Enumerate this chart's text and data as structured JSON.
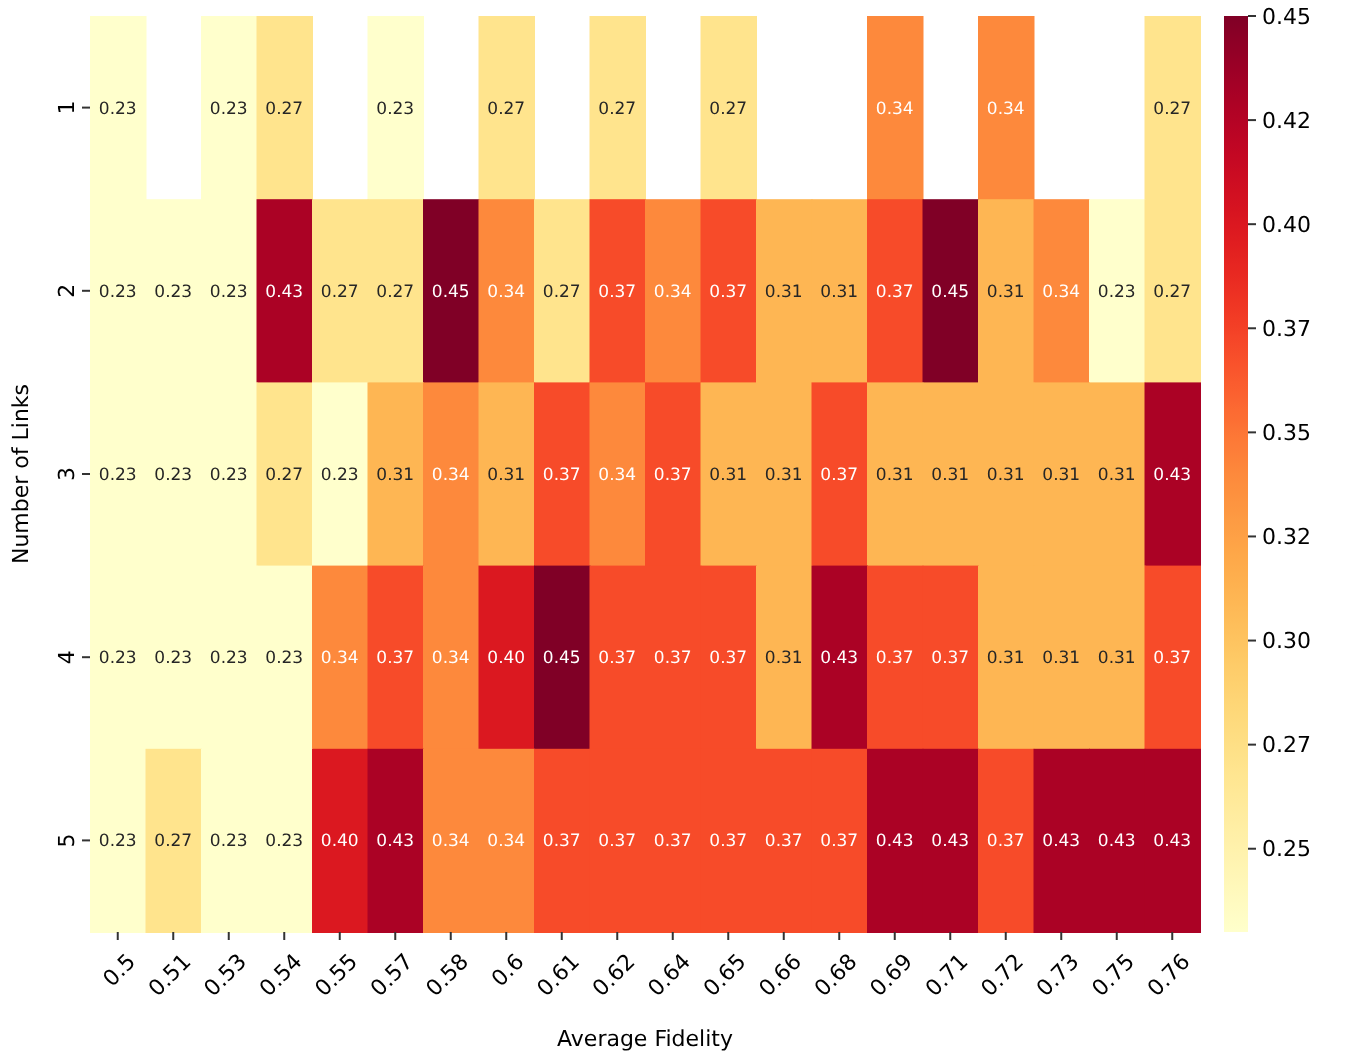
{
  "chart_data": {
    "type": "heatmap",
    "xlabel": "Average Fidelity",
    "ylabel": "Number of Links",
    "categories": [
      "0.5",
      "0.51",
      "0.53",
      "0.54",
      "0.55",
      "0.57",
      "0.58",
      "0.6",
      "0.61",
      "0.62",
      "0.64",
      "0.65",
      "0.66",
      "0.68",
      "0.69",
      "0.71",
      "0.72",
      "0.73",
      "0.75",
      "0.76"
    ],
    "y_categories": [
      "1",
      "2",
      "3",
      "4",
      "5"
    ],
    "cells": [
      [
        0.23,
        null,
        0.23,
        0.27,
        null,
        0.23,
        null,
        0.27,
        null,
        0.27,
        null,
        0.27,
        null,
        null,
        0.34,
        null,
        0.34,
        null,
        null,
        0.27
      ],
      [
        0.23,
        0.23,
        0.23,
        0.43,
        0.27,
        0.27,
        0.45,
        0.34,
        0.27,
        0.37,
        0.34,
        0.37,
        0.31,
        0.31,
        0.37,
        0.45,
        0.31,
        0.34,
        0.23,
        0.27
      ],
      [
        0.23,
        0.23,
        0.23,
        0.27,
        0.23,
        0.31,
        0.34,
        0.31,
        0.37,
        0.34,
        0.37,
        0.31,
        0.31,
        0.37,
        0.31,
        0.31,
        0.31,
        0.31,
        0.31,
        0.43
      ],
      [
        0.23,
        0.23,
        0.23,
        0.23,
        0.34,
        0.37,
        0.34,
        0.4,
        0.45,
        0.37,
        0.37,
        0.37,
        0.31,
        0.43,
        0.37,
        0.37,
        0.31,
        0.31,
        0.31,
        0.37
      ],
      [
        0.23,
        0.27,
        0.23,
        0.23,
        0.4,
        0.43,
        0.34,
        0.34,
        0.37,
        0.37,
        0.37,
        0.37,
        0.37,
        0.37,
        0.43,
        0.43,
        0.37,
        0.43,
        0.43,
        0.43
      ]
    ],
    "cell_labels": [
      [
        "0.23",
        null,
        "0.23",
        "0.27",
        null,
        "0.23",
        null,
        "0.27",
        null,
        "0.27",
        null,
        "0.27",
        null,
        null,
        "0.34",
        null,
        "0.34",
        null,
        null,
        "0.27"
      ],
      [
        "0.23",
        "0.23",
        "0.23",
        "0.43",
        "0.27",
        "0.27",
        "0.45",
        "0.34",
        "0.27",
        "0.37",
        "0.34",
        "0.37",
        "0.31",
        "0.31",
        "0.37",
        "0.45",
        "0.31",
        "0.34",
        "0.23",
        "0.27"
      ],
      [
        "0.23",
        "0.23",
        "0.23",
        "0.27",
        "0.23",
        "0.31",
        "0.34",
        "0.31",
        "0.37",
        "0.34",
        "0.37",
        "0.31",
        "0.31",
        "0.37",
        "0.31",
        "0.31",
        "0.31",
        "0.31",
        "0.31",
        "0.43"
      ],
      [
        "0.23",
        "0.23",
        "0.23",
        "0.23",
        "0.34",
        "0.37",
        "0.34",
        "0.40",
        "0.45",
        "0.37",
        "0.37",
        "0.37",
        "0.31",
        "0.43",
        "0.37",
        "0.37",
        "0.31",
        "0.31",
        "0.31",
        "0.37"
      ],
      [
        "0.23",
        "0.27",
        "0.23",
        "0.23",
        "0.40",
        "0.43",
        "0.34",
        "0.34",
        "0.37",
        "0.37",
        "0.37",
        "0.37",
        "0.37",
        "0.37",
        "0.43",
        "0.43",
        "0.37",
        "0.43",
        "0.43",
        "0.43"
      ]
    ],
    "data_labels": true,
    "clim": [
      0.23,
      0.45
    ],
    "cticks": [
      {
        "value": 0.25,
        "label": "0.25"
      },
      {
        "value": 0.275,
        "label": "0.27"
      },
      {
        "value": 0.3,
        "label": "0.30"
      },
      {
        "value": 0.325,
        "label": "0.32"
      },
      {
        "value": 0.35,
        "label": "0.35"
      },
      {
        "value": 0.375,
        "label": "0.37"
      },
      {
        "value": 0.4,
        "label": "0.40"
      },
      {
        "value": 0.425,
        "label": "0.42"
      },
      {
        "value": 0.45,
        "label": "0.45"
      }
    ]
  }
}
